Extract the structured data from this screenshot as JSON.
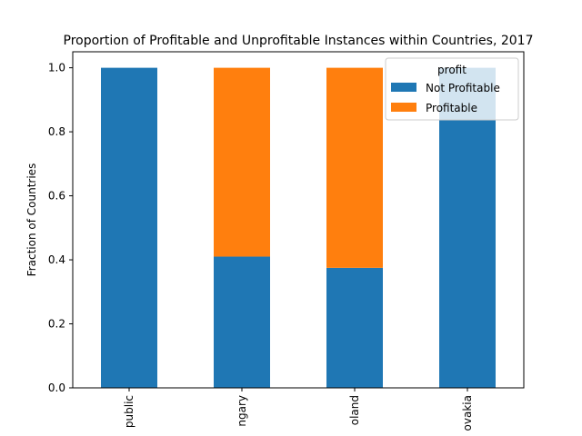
{
  "chart_data": {
    "type": "bar",
    "stacked": true,
    "title": "Proportion of Profitable and Unprofitable Instances within Countries, 2017",
    "xlabel": "",
    "ylabel": "Fraction of Countries",
    "ylim": [
      0,
      1.05
    ],
    "yticks": [
      0.0,
      0.2,
      0.4,
      0.6,
      0.8,
      1.0
    ],
    "ytick_labels": [
      "0.0",
      "0.2",
      "0.4",
      "0.6",
      "0.8",
      "1.0"
    ],
    "categories": [
      "public",
      "ngary",
      "oland",
      "ovakia"
    ],
    "series": [
      {
        "name": "Not Profitable",
        "values": [
          1.0,
          0.41,
          0.375,
          1.0
        ],
        "color": "#1f77b4"
      },
      {
        "name": "Profitable",
        "values": [
          0.0,
          0.59,
          0.625,
          0.0
        ],
        "color": "#ff7f0e"
      }
    ],
    "legend": {
      "title": "profit",
      "position": "upper-right"
    },
    "grid": false
  }
}
